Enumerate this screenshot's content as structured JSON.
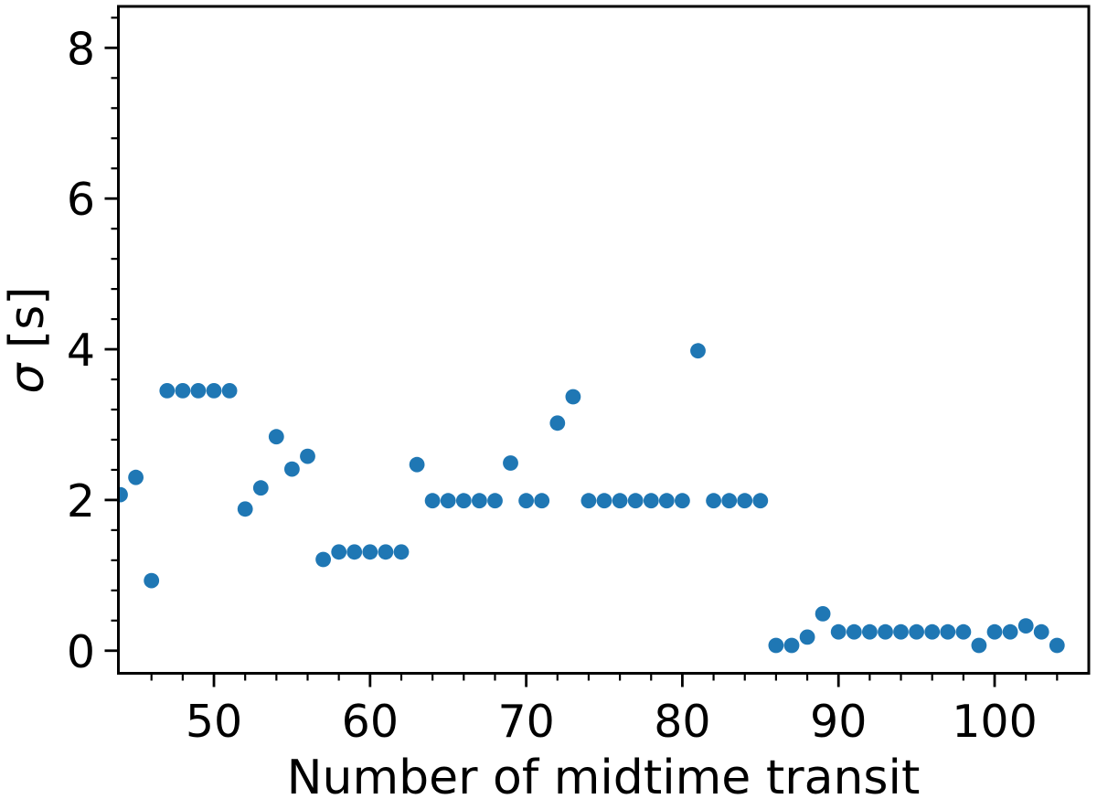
{
  "figure": {
    "background_color": "#ffffff",
    "spine_color": "#000000",
    "text_color": "#000000"
  },
  "chart_data": {
    "type": "scatter",
    "title": "",
    "xlabel": "Number of midtime transit",
    "ylabel_symbol": "σ",
    "ylabel_units": " [s]",
    "ylabel_full": "σ [s]",
    "marker_color": "#1f77b4",
    "marker_radius_px": 8.4,
    "grid": false,
    "legend": null,
    "xlim": [
      43.88,
      106.03
    ],
    "ylim": [
      -0.3,
      8.55
    ],
    "x_major_ticks": [
      50,
      60,
      70,
      80,
      90,
      100
    ],
    "x_major_tick_labels": [
      "50",
      "60",
      "70",
      "80",
      "90",
      "100"
    ],
    "x_minor_tick_step": 2,
    "y_major_ticks": [
      0,
      2,
      4,
      6,
      8
    ],
    "y_major_tick_labels": [
      "0",
      "2",
      "4",
      "6",
      "8"
    ],
    "y_minor_tick_step": 0.4,
    "x": [
      44,
      45,
      46,
      47,
      48,
      49,
      50,
      51,
      52,
      53,
      54,
      55,
      56,
      57,
      58,
      59,
      60,
      61,
      62,
      63,
      64,
      65,
      66,
      67,
      68,
      69,
      70,
      71,
      72,
      73,
      74,
      75,
      76,
      77,
      78,
      79,
      80,
      81,
      82,
      83,
      84,
      85,
      86,
      87,
      88,
      89,
      90,
      91,
      92,
      93,
      94,
      95,
      96,
      97,
      98,
      99,
      100,
      101,
      102,
      103,
      104
    ],
    "y": [
      2.07,
      2.3,
      0.93,
      3.45,
      3.45,
      3.45,
      3.45,
      3.45,
      1.88,
      2.16,
      2.84,
      2.41,
      2.58,
      1.21,
      1.31,
      1.31,
      1.31,
      1.31,
      1.31,
      2.47,
      1.99,
      1.99,
      1.99,
      1.99,
      1.99,
      2.49,
      1.99,
      1.99,
      3.02,
      3.37,
      1.99,
      1.99,
      1.99,
      1.99,
      1.99,
      1.99,
      1.99,
      3.98,
      1.99,
      1.99,
      1.99,
      1.99,
      0.07,
      0.07,
      0.18,
      0.49,
      0.25,
      0.25,
      0.25,
      0.25,
      0.25,
      0.25,
      0.25,
      0.25,
      0.25,
      0.07,
      0.25,
      0.25,
      0.33,
      0.25,
      0.07
    ]
  }
}
